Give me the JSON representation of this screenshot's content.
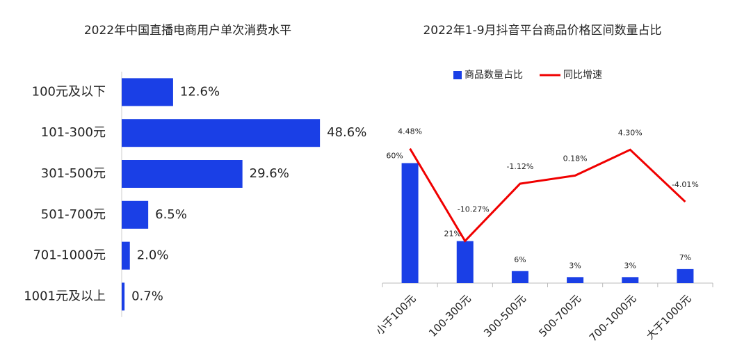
{
  "chart_data": [
    {
      "type": "bar",
      "orientation": "horizontal",
      "title": "2022年中国直播电商用户单次消费水平",
      "categories": [
        "100元及以下",
        "101-300元",
        "301-500元",
        "501-700元",
        "701-1000元",
        "1001元及以上"
      ],
      "values": [
        12.6,
        48.6,
        29.6,
        6.5,
        2.0,
        0.7
      ],
      "value_labels": [
        "12.6%",
        "48.6%",
        "29.6%",
        "6.5%",
        "2.0%",
        "0.7%"
      ],
      "color": "#1a3fe6",
      "xlim": [
        0,
        60
      ]
    },
    {
      "type": "bar",
      "title": "2022年1-9月抖音平台商品价格区间数量占比",
      "categories": [
        "小于100元",
        "100-300元",
        "300-500元",
        "500-700元",
        "700-1000元",
        "大于1000元"
      ],
      "series": [
        {
          "name": "商品数量占比",
          "type": "bar",
          "color": "#1a3fe6",
          "values": [
            60,
            21,
            6,
            3,
            3,
            7
          ],
          "value_labels": [
            "60%",
            "21%",
            "6%",
            "3%",
            "3%",
            "7%"
          ]
        },
        {
          "name": "同比增速",
          "type": "line",
          "axis": "y2",
          "color": "#f00000",
          "values": [
            4.48,
            -10.27,
            -1.12,
            0.18,
            4.3,
            -4.01
          ],
          "value_labels": [
            "4.48%",
            "-10.27%",
            "-1.12%",
            "0.18%",
            "4.30%",
            "-4.01%"
          ]
        }
      ],
      "ylim": [
        0,
        72
      ],
      "y2lim": [
        -17,
        6
      ],
      "legend": "top"
    }
  ]
}
